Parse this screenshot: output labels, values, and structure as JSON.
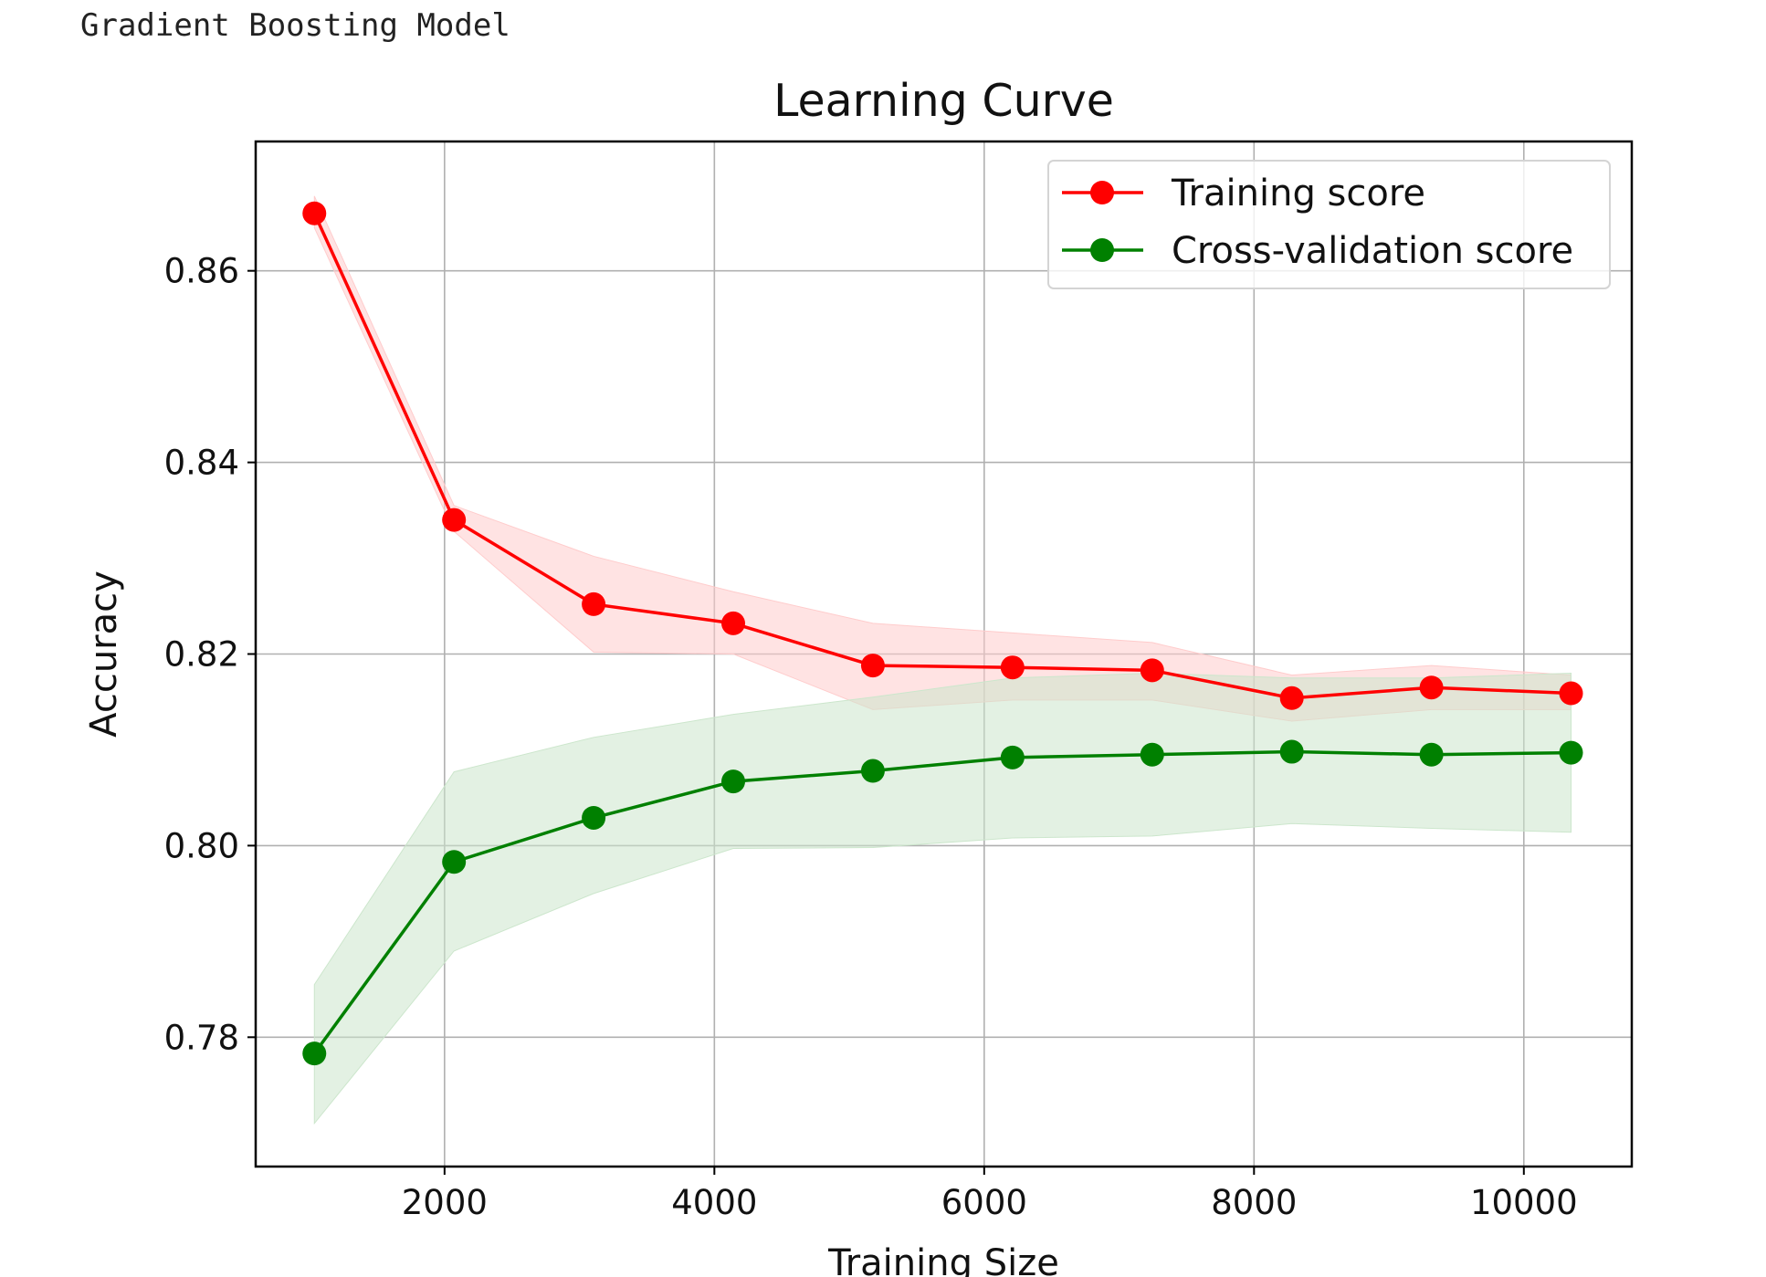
{
  "output": {
    "model_label": "Gradient Boosting Model"
  },
  "chart_data": {
    "type": "line",
    "title": "Learning Curve",
    "xlabel": "Training Size",
    "ylabel": "Accuracy",
    "xlim": [
      600,
      10800
    ],
    "ylim": [
      0.7665,
      0.8735
    ],
    "xticks": [
      2000,
      4000,
      6000,
      8000,
      10000
    ],
    "xtick_labels": [
      "2000",
      "4000",
      "6000",
      "8000",
      "10000"
    ],
    "yticks": [
      0.78,
      0.8,
      0.82,
      0.84,
      0.86
    ],
    "ytick_labels": [
      "0.78",
      "0.80",
      "0.82",
      "0.84",
      "0.86"
    ],
    "grid": true,
    "legend_position": "top-right",
    "x": [
      1035,
      2070,
      3105,
      4140,
      5175,
      6210,
      7245,
      8280,
      9315,
      10350
    ],
    "series": [
      {
        "name": "Training score",
        "color": "#ff0000",
        "band_color": "#ffcccc",
        "values": [
          0.866,
          0.834,
          0.8252,
          0.8232,
          0.8188,
          0.8186,
          0.8183,
          0.8154,
          0.8165,
          0.8159
        ],
        "lower": [
          0.8645,
          0.8328,
          0.8202,
          0.82,
          0.8142,
          0.8152,
          0.8152,
          0.813,
          0.8142,
          0.8142
        ],
        "upper": [
          0.8678,
          0.8355,
          0.8302,
          0.8265,
          0.8232,
          0.8222,
          0.8212,
          0.8178,
          0.8188,
          0.8178
        ]
      },
      {
        "name": "Cross-validation score",
        "color": "#008000",
        "band_color": "#cce6cc",
        "values": [
          0.7783,
          0.7983,
          0.8029,
          0.8067,
          0.8078,
          0.8092,
          0.8095,
          0.8098,
          0.8095,
          0.8097
        ],
        "lower": [
          0.771,
          0.789,
          0.795,
          0.7997,
          0.7998,
          0.8008,
          0.801,
          0.8023,
          0.8018,
          0.8014
        ],
        "upper": [
          0.7855,
          0.8077,
          0.8113,
          0.8137,
          0.8155,
          0.8175,
          0.818,
          0.8175,
          0.8175,
          0.818
        ]
      }
    ]
  }
}
